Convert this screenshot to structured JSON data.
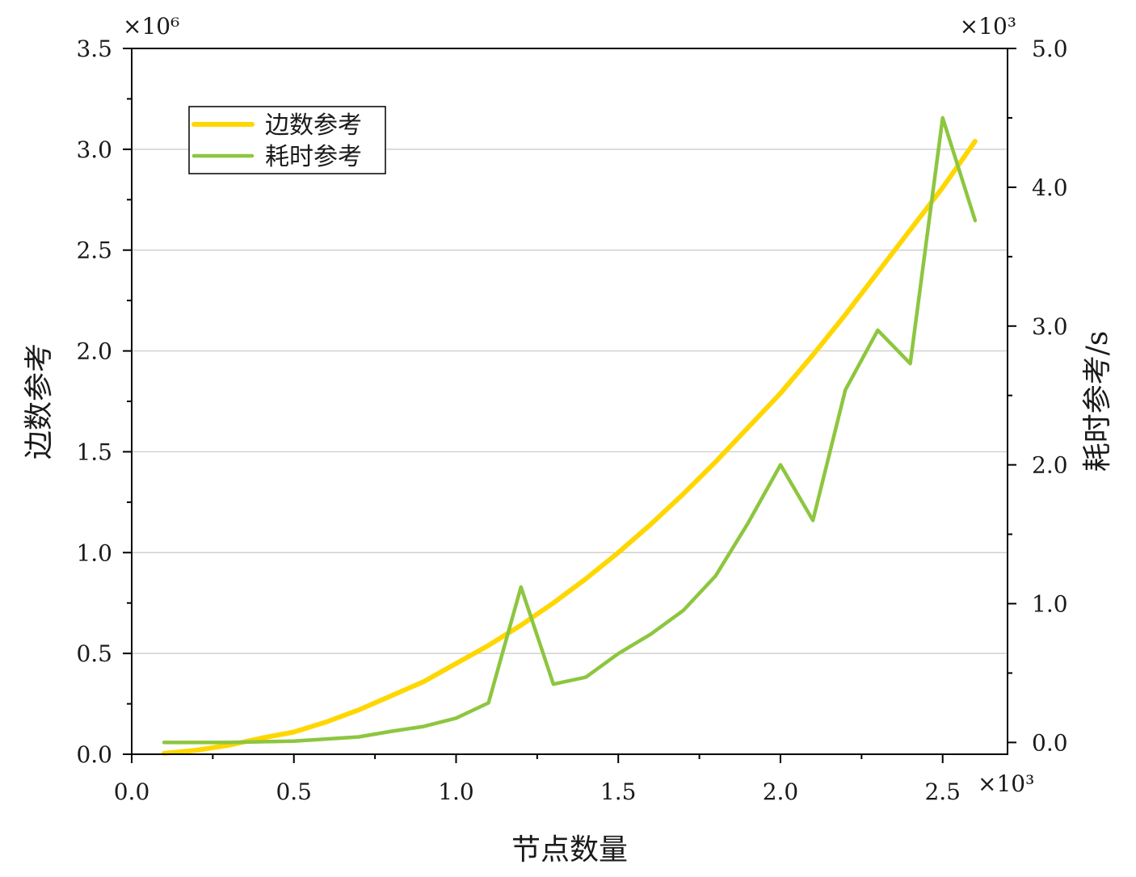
{
  "chart_data": {
    "type": "line",
    "xlabel": "节点数量",
    "ylabel": "边数参考",
    "y2label": "耗时参考/s",
    "x_multiplier": "×10³",
    "y_multiplier": "×10⁶",
    "y2_multiplier": "×10³",
    "xlim": [
      0.0,
      2.7
    ],
    "ylim": [
      0.0,
      3.5
    ],
    "y2lim": [
      -0.085,
      5.0
    ],
    "x_ticks": [
      "0.0",
      "0.5",
      "1.0",
      "1.5",
      "2.0",
      "2.5"
    ],
    "y_ticks": [
      "0.0",
      "0.5",
      "1.0",
      "1.5",
      "2.0",
      "2.5",
      "3.0",
      "3.5"
    ],
    "y2_ticks": [
      "0.0",
      "1.0",
      "2.0",
      "3.0",
      "4.0",
      "5.0"
    ],
    "grid": "horizontal",
    "legend_position": "top-left",
    "series": [
      {
        "name": "边数参考",
        "axis": "left",
        "color": "#FFD700",
        "x": [
          0.1,
          0.2,
          0.3,
          0.4,
          0.5,
          0.6,
          0.7,
          0.8,
          0.9,
          1.0,
          1.1,
          1.2,
          1.3,
          1.4,
          1.5,
          1.6,
          1.7,
          1.8,
          1.9,
          2.0,
          2.1,
          2.2,
          2.3,
          2.4,
          2.5,
          2.6
        ],
        "y": [
          0.005,
          0.02,
          0.045,
          0.08,
          0.11,
          0.16,
          0.22,
          0.29,
          0.36,
          0.45,
          0.54,
          0.64,
          0.75,
          0.87,
          1.0,
          1.14,
          1.29,
          1.45,
          1.62,
          1.79,
          1.98,
          2.18,
          2.39,
          2.6,
          2.81,
          3.04
        ]
      },
      {
        "name": "耗时参考",
        "axis": "right",
        "color": "#8DC63F",
        "x": [
          0.1,
          0.2,
          0.3,
          0.4,
          0.5,
          0.6,
          0.7,
          0.8,
          0.9,
          1.0,
          1.1,
          1.2,
          1.3,
          1.4,
          1.5,
          1.6,
          1.7,
          1.8,
          1.9,
          2.0,
          2.1,
          2.2,
          2.3,
          2.4,
          2.5,
          2.6
        ],
        "y": [
          0.0,
          0.0,
          0.0,
          0.005,
          0.01,
          0.025,
          0.04,
          0.08,
          0.115,
          0.175,
          0.285,
          1.12,
          0.42,
          0.47,
          0.64,
          0.78,
          0.95,
          1.2,
          1.58,
          2.0,
          1.6,
          2.54,
          2.97,
          2.73,
          4.5,
          3.76
        ]
      }
    ]
  }
}
